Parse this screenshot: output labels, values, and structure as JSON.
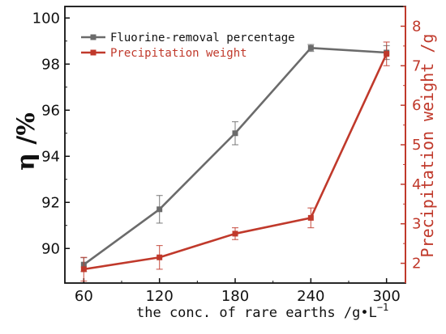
{
  "chart_data": {
    "type": "line",
    "x": [
      60,
      120,
      180,
      240,
      300
    ],
    "xlabel": "the conc. of rare earths /g•L",
    "xlabel_sup": "−1",
    "xlim": [
      45,
      315
    ],
    "ylabel": "η /%",
    "ylim": [
      88.5,
      100.5
    ],
    "yticks": [
      90,
      92,
      94,
      96,
      98,
      100
    ],
    "y2label": "Precipitation weight /g",
    "y2lim": [
      1.5,
      8.5
    ],
    "y2ticks": [
      2,
      3,
      4,
      5,
      6,
      7,
      8
    ],
    "legend_position": "top-left",
    "grid": false,
    "series": [
      {
        "name": "Fluorine-removal percentage",
        "axis": "left",
        "color": "#6b6b6b",
        "values": [
          89.3,
          91.7,
          95.0,
          98.7,
          98.5
        ],
        "errors": [
          0.3,
          0.6,
          0.5,
          0.15,
          0.3
        ]
      },
      {
        "name": "Precipitation weight",
        "axis": "right",
        "color": "#c0392b",
        "values": [
          1.85,
          2.15,
          2.75,
          3.15,
          7.3
        ],
        "errors": [
          0.3,
          0.3,
          0.15,
          0.25,
          0.3
        ]
      }
    ]
  }
}
